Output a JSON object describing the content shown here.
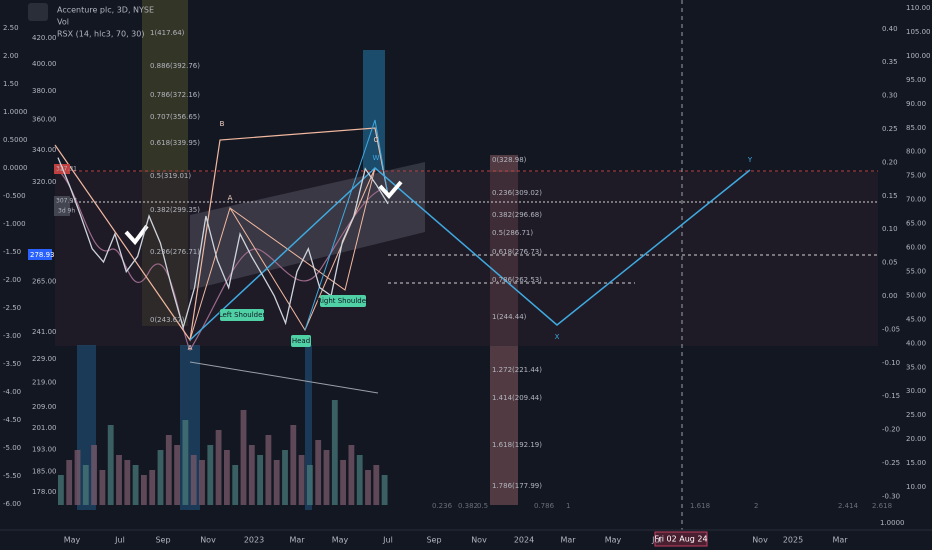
{
  "header": {
    "title": "Accenture plc, 3D, NYSE",
    "vol": "Vol",
    "indicator": "RSX (14, hlc3, 70, 30)"
  },
  "rsx_axis": [
    "2.50",
    "2.00",
    "1.50",
    "1.0000",
    "0.5000",
    "0.0000",
    "-0.500",
    "-1.000",
    "-1.50",
    "-2.00",
    "-2.50",
    "-3.00",
    "-3.50",
    "-4.00",
    "-4.50",
    "-5.00",
    "-5.50",
    "-6.00"
  ],
  "price_axis": [
    "420.00",
    "400.00",
    "380.00",
    "360.00",
    "340.00",
    "320.00",
    "265.00",
    "241.00",
    "229.00",
    "219.00",
    "209.00",
    "201.00",
    "193.00",
    "185.00",
    "178.00"
  ],
  "badges": {
    "last": "327.31",
    "current": "307.97",
    "countdown": "3d 9h",
    "level": "278.93"
  },
  "right_axis_1": [
    "0.40",
    "0.35",
    "0.30",
    "0.25",
    "0.20",
    "0.15",
    "0.10",
    "0.05",
    "0.00",
    "-0.05",
    "-0.10",
    "-0.15",
    "-0.20",
    "-0.25",
    "-0.30"
  ],
  "right_axis_2": [
    "110.00",
    "105.00",
    "100.00",
    "95.00",
    "90.00",
    "85.00",
    "80.00",
    "75.00",
    "70.00",
    "65.00",
    "60.00",
    "55.00",
    "50.00",
    "45.00",
    "40.00",
    "35.00",
    "30.00",
    "25.00",
    "20.00",
    "15.00",
    "10.00"
  ],
  "right_axis_2_extra": "1.0000",
  "time_axis": [
    "May",
    "Jul",
    "Sep",
    "Nov",
    "2023",
    "Mar",
    "May",
    "Jul",
    "Sep",
    "Nov",
    "2024",
    "Mar",
    "May",
    "Jul",
    "Nov",
    "2025",
    "Mar"
  ],
  "cursor_date": "Fri 02 Aug 24",
  "fib_left": [
    "1(417.64)",
    "0.886(392.76)",
    "0.786(372.16)",
    "0.707(356.65)",
    "0.618(339.95)",
    "0.5(319.01)",
    "0.382(299.35)",
    "0.236(276.71)",
    "0(243.67)"
  ],
  "fib_right": [
    "0(328.98)",
    "0.236(309.02)",
    "0.382(296.68)",
    "0.5(286.71)",
    "0.618(276.73)",
    "0.786(262.53)",
    "1(244.44)",
    "1.272(221.44)",
    "1.414(209.44)",
    "1.618(192.19)",
    "1.786(177.99)"
  ],
  "fib_time": [
    "0.236",
    "0.382",
    "0.5",
    "0.786",
    "1",
    "1.618",
    "2",
    "2.414",
    "2.618"
  ],
  "pattern_labels": {
    "a1": "A",
    "b": "B",
    "c": "C",
    "w": "W",
    "a2": "A",
    "x": "X",
    "y": "Y",
    "left_shoulder": "Left Shoulder",
    "head": "Head",
    "right_shoulder": "Right Shoulder"
  },
  "price_path": [
    335,
    318,
    300,
    282,
    275,
    290,
    270,
    278,
    300,
    285,
    262,
    243,
    262,
    300,
    276,
    262,
    290,
    278,
    268,
    258,
    245,
    270,
    282,
    262,
    258,
    286,
    300,
    328,
    318,
    307
  ],
  "volume": [
    30,
    45,
    55,
    40,
    60,
    35,
    80,
    50,
    45,
    40,
    30,
    35,
    55,
    70,
    60,
    85,
    50,
    45,
    60,
    75,
    55,
    40,
    95,
    60,
    50,
    70,
    45,
    55,
    80,
    50,
    40,
    65,
    55,
    105,
    45,
    60,
    50,
    35,
    40,
    30
  ]
}
